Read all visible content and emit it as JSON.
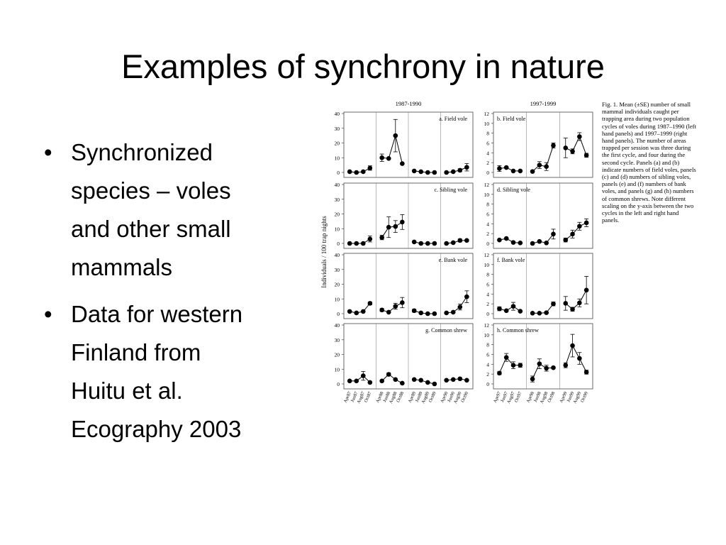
{
  "title": "Examples of synchrony in nature",
  "bullets": [
    [
      "Synchronized",
      "species – voles",
      "and other small",
      "mammals"
    ],
    [
      "Data for western",
      "Finland from",
      "Huitu et al.",
      "Ecography 2003"
    ]
  ],
  "figure": {
    "y_label": "Individuals / 100 trap nights",
    "caption": "Fig. 1. Mean (±SE) number of small mammal individuals caught per trapping area during two population cycles of voles during 1987–1990 (left hand panels) and 1997–1999 (right hand panels). The number of areas trapped per session was three during the first cycle, and four during the second cycle. Panels (a) and (b) indicate numbers of field voles, panels (c) and (d) numbers of sibling voles, panels (e) and (f) numbers of bank voles, and panels (g) and (h) numbers of common shrews. Note different scaling on the y-axis between the two cycles in the left and right hand panels.",
    "columns": [
      {
        "title": "1987-1990",
        "x": [
          "Apr87",
          "Jun87",
          "Aug87",
          "Oct87",
          "Apr88",
          "Jun88",
          "Aug88",
          "Oct88",
          "Apr89",
          "Jun89",
          "Aug89",
          "Oct89",
          "Apr90",
          "Jun90",
          "Aug90",
          "Oct90"
        ],
        "ylim": [
          0,
          40
        ],
        "yticks": [
          0,
          10,
          20,
          30,
          40
        ],
        "panels": [
          {
            "label": "a. Field vole",
            "values": [
              0.5,
              0,
              0.5,
              3,
              10,
              9.5,
              25,
              6,
              1,
              0.5,
              0,
              0,
              0,
              0.5,
              1.5,
              3.5
            ],
            "se": [
              0.3,
              0.3,
              0.3,
              1.5,
              2.5,
              0.5,
              11,
              0.5,
              0.3,
              0.3,
              0.3,
              0.3,
              0.3,
              0.3,
              1,
              2.5
            ]
          },
          {
            "label": "c. Sibling vole",
            "values": [
              0,
              0,
              0,
              3,
              4,
              11,
              11.5,
              14.5,
              1,
              0,
              0,
              0,
              0,
              0.5,
              2,
              2
            ],
            "se": [
              0.3,
              0.3,
              0.3,
              2,
              1.5,
              7,
              4,
              5,
              0.3,
              0.3,
              0.3,
              0.3,
              0.3,
              0.3,
              1,
              0.5
            ]
          },
          {
            "label": "e. Bank vole",
            "values": [
              1.5,
              0.5,
              1.5,
              7,
              2.5,
              1,
              5,
              7.5,
              2,
              0.5,
              0,
              0,
              0.5,
              1,
              4.5,
              11.5
            ],
            "se": [
              0.3,
              0.3,
              0.3,
              1,
              1,
              0.3,
              2,
              3.5,
              1,
              0.3,
              0.3,
              0.3,
              0.3,
              0.3,
              2,
              4
            ]
          },
          {
            "label": "g. Common shrew",
            "values": [
              2,
              2,
              5.5,
              1,
              2,
              6.5,
              3,
              0.5,
              3,
              2.5,
              1,
              0,
              2.5,
              3,
              3.5,
              2.5
            ],
            "se": [
              0.3,
              0.3,
              3,
              0.3,
              0.3,
              1,
              0.3,
              0.3,
              0.3,
              0.3,
              0.3,
              0.3,
              0.3,
              0.3,
              0.5,
              0.5
            ]
          }
        ]
      },
      {
        "title": "1997-1999",
        "x": [
          "Apr97",
          "Jun97",
          "Aug97",
          "Oct97",
          "Apr98",
          "Jun98",
          "Aug98",
          "Oct98",
          "Apr99",
          "Jun99",
          "Aug99",
          "Oct99"
        ],
        "ylim": [
          0,
          12
        ],
        "yticks": [
          0,
          2,
          4,
          6,
          8,
          10,
          12
        ],
        "panels": [
          {
            "label": "b. Field vole",
            "values": [
              0.8,
              1,
              0.3,
              0.3,
              0.2,
              1.5,
              1.2,
              5.5,
              5,
              4.3,
              7.3,
              3.5
            ],
            "se": [
              0.6,
              0.1,
              0.1,
              0.1,
              0.1,
              0.7,
              0.8,
              0.5,
              2,
              0.5,
              0.8,
              0.4
            ]
          },
          {
            "label": "d. Sibling vole",
            "values": [
              0.7,
              1,
              0.2,
              0.1,
              0,
              0.4,
              0.1,
              1.9,
              0.7,
              1.9,
              3.5,
              4.2
            ],
            "se": [
              0.1,
              0.1,
              0.1,
              0.1,
              0.1,
              0.1,
              0.1,
              1,
              0.4,
              0.8,
              0.8,
              0.8
            ]
          },
          {
            "label": "f. Bank vole",
            "values": [
              1,
              0.6,
              1.5,
              0.5,
              0.1,
              0.1,
              0.2,
              2,
              2.1,
              0.9,
              2.2,
              4.8
            ],
            "se": [
              0.4,
              0.1,
              0.8,
              0.1,
              0.1,
              0.1,
              0.1,
              0.4,
              1.4,
              0.4,
              0.8,
              2.8
            ]
          },
          {
            "label": "h. Common shrew",
            "values": [
              2.2,
              5.4,
              3.8,
              3.8,
              1,
              4.1,
              3.2,
              3.3,
              3.8,
              7.8,
              5.2,
              2.4
            ],
            "se": [
              0.3,
              0.8,
              0.7,
              0.4,
              0.6,
              1,
              0.6,
              0.2,
              0.5,
              2.3,
              1.2,
              0.4
            ]
          }
        ]
      }
    ]
  }
}
